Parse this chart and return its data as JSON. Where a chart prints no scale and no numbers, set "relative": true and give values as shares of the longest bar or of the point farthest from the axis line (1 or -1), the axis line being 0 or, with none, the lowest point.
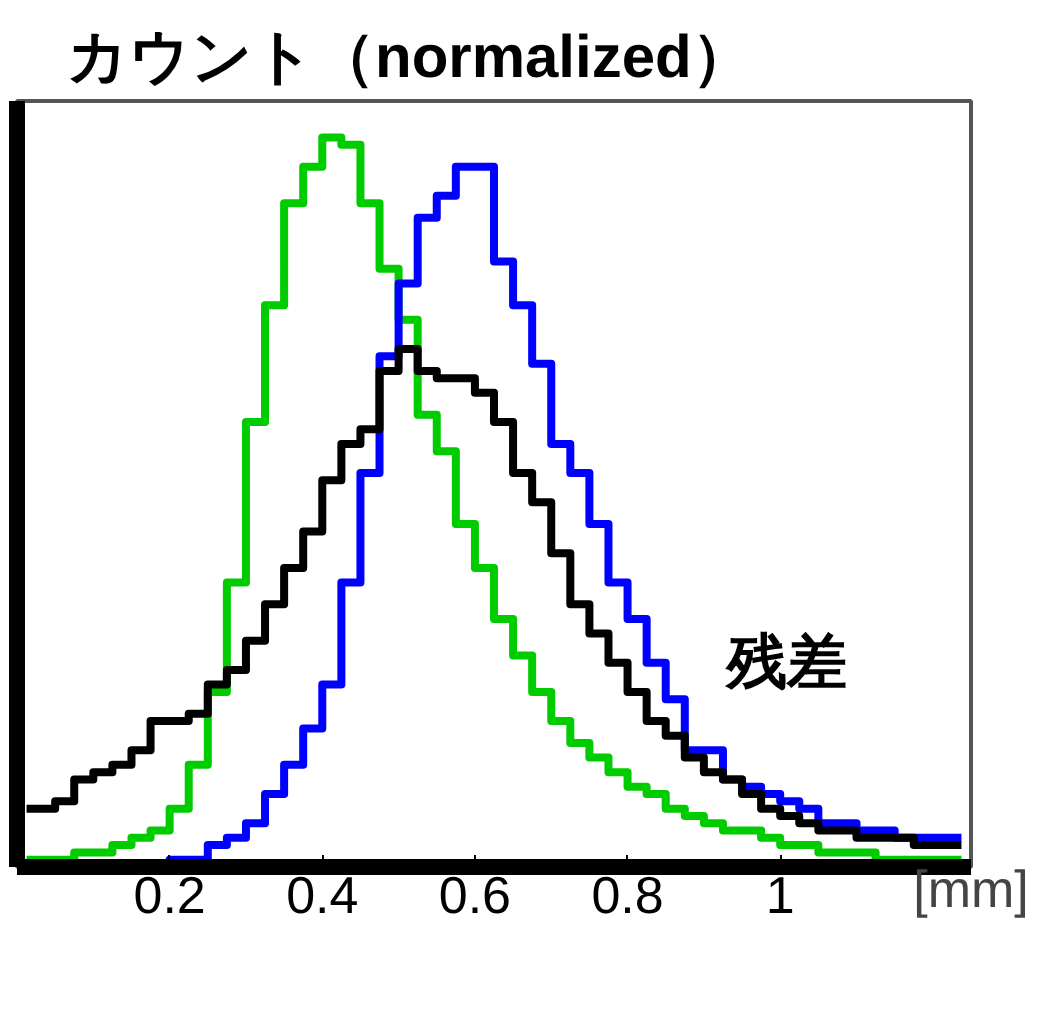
{
  "chart_data": {
    "type": "step",
    "ylabel": "カウント（normalized）",
    "xlabel": "[mm]",
    "relative": true,
    "xlim": [
      0,
      1.25
    ],
    "xticks": [
      {
        "value": 0.2,
        "label": "0.2"
      },
      {
        "value": 0.4,
        "label": "0.4"
      },
      {
        "value": 0.6,
        "label": "0.6"
      },
      {
        "value": 0.8,
        "label": "0.8"
      },
      {
        "value": 1,
        "label": "1"
      }
    ],
    "tick_labels": "x",
    "grid": false,
    "x": [
      0.0125,
      0.0375,
      0.0625,
      0.0875,
      0.1125,
      0.1375,
      0.1625,
      0.1875,
      0.2125,
      0.2375,
      0.2625,
      0.2875,
      0.3125,
      0.3375,
      0.3625,
      0.3875,
      0.4125,
      0.4375,
      0.4625,
      0.4875,
      0.5125,
      0.5375,
      0.5625,
      0.5875,
      0.6125,
      0.6375,
      0.6625,
      0.6875,
      0.7125,
      0.7375,
      0.7625,
      0.7875,
      0.8125,
      0.8375,
      0.8625,
      0.8875,
      0.9125,
      0.9375,
      0.9625,
      0.9875,
      1.0125,
      1.0375,
      1.0625,
      1.0875,
      1.1125,
      1.1375,
      1.1625,
      1.1875,
      1.2125,
      1.2375
    ],
    "series": [
      {
        "color": "#00cc00",
        "values": [
          0.01,
          0.01,
          0.01,
          0.02,
          0.02,
          0.03,
          0.04,
          0.05,
          0.08,
          0.14,
          0.24,
          0.39,
          0.61,
          0.77,
          0.91,
          0.96,
          1.0,
          0.99,
          0.91,
          0.82,
          0.75,
          0.62,
          0.57,
          0.47,
          0.41,
          0.34,
          0.29,
          0.24,
          0.2,
          0.17,
          0.15,
          0.13,
          0.11,
          0.1,
          0.08,
          0.07,
          0.06,
          0.05,
          0.05,
          0.04,
          0.03,
          0.03,
          0.02,
          0.02,
          0.02,
          0.01,
          0.01,
          0.01,
          0.01,
          0.01
        ]
      },
      {
        "color": "#0000ff",
        "values": [
          null,
          null,
          null,
          null,
          null,
          null,
          0,
          0,
          0.01,
          0.01,
          0.03,
          0.04,
          0.06,
          0.1,
          0.14,
          0.19,
          0.25,
          0.39,
          0.54,
          0.7,
          0.8,
          0.89,
          0.92,
          0.96,
          0.96,
          0.83,
          0.77,
          0.69,
          0.58,
          0.54,
          0.47,
          0.39,
          0.34,
          0.28,
          0.23,
          0.16,
          0.16,
          0.12,
          0.11,
          0.1,
          0.09,
          0.08,
          0.06,
          0.06,
          0.05,
          0.05,
          0.04,
          0.04,
          0.04,
          0.04
        ]
      },
      {
        "color": "#000000",
        "values": [
          0.08,
          0.08,
          0.09,
          0.12,
          0.13,
          0.14,
          0.16,
          0.2,
          0.2,
          0.21,
          0.25,
          0.27,
          0.31,
          0.36,
          0.41,
          0.46,
          0.53,
          0.58,
          0.6,
          0.68,
          0.71,
          0.68,
          0.67,
          0.67,
          0.65,
          0.61,
          0.54,
          0.5,
          0.43,
          0.36,
          0.32,
          0.28,
          0.24,
          0.2,
          0.18,
          0.15,
          0.13,
          0.12,
          0.1,
          0.08,
          0.07,
          0.06,
          0.05,
          0.05,
          0.04,
          0.04,
          0.04,
          0.03,
          0.03,
          0.03
        ]
      }
    ],
    "annotations": [
      "残差"
    ]
  }
}
